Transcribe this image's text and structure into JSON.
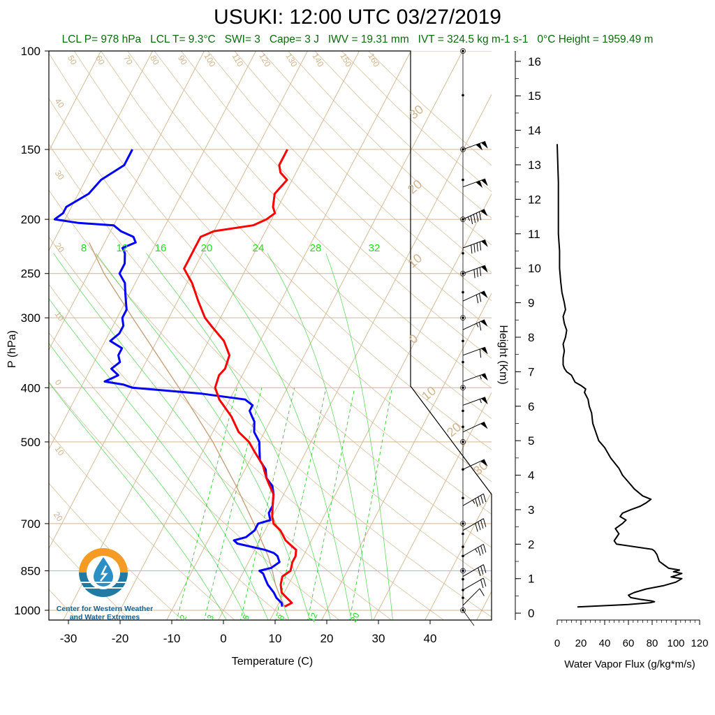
{
  "header": {
    "title": "USUKI: 12:00 UTC 03/27/2019",
    "stats": [
      {
        "label": "LCL P= 978 hPa"
      },
      {
        "label": "LCL T= 9.3°C"
      },
      {
        "label": "SWI= 3"
      },
      {
        "label": "Cape= 3 J"
      },
      {
        "label": "IWV = 19.31 mm"
      },
      {
        "label": "IVT = 324.5 kg m-1 s-1"
      },
      {
        "label": "0°C Height = 1959.49 m"
      }
    ]
  },
  "logo": {
    "line1": "Center for Western Weather",
    "line2": "and Water Extremes"
  },
  "colors": {
    "temperature": "#ff0000",
    "dewpoint": "#0000ff",
    "isotherm": "#d2b48c",
    "mixing_ratio": "#33cc33",
    "subtitle": "#0a6b0a",
    "flux": "#000000"
  },
  "chart_data": [
    {
      "type": "line",
      "subtype": "skew-t",
      "xlabel": "Temperature (C)",
      "ylabel": "P (hPa)",
      "xlim": [
        -34,
        50
      ],
      "ylim": [
        1050,
        100
      ],
      "yscale": "log",
      "x_ticks": [
        "-30",
        "-20",
        "-10",
        "0",
        "10",
        "20",
        "30",
        "40"
      ],
      "y_ticks": [
        "100",
        "150",
        "200",
        "250",
        "300",
        "400",
        "500",
        "700",
        "850",
        "1000"
      ],
      "isotherm_labels": [
        "50",
        "60",
        "70",
        "80",
        "90",
        "100",
        "110",
        "120",
        "130",
        "140",
        "150",
        "160",
        "40",
        "30",
        "20",
        "10",
        "0",
        "10",
        "20",
        "30",
        "20",
        "10",
        "0",
        "10",
        "20",
        "30"
      ],
      "mixing_ratio_labels_top": [
        "8",
        "12",
        "16",
        "20",
        "24",
        "28",
        "32"
      ],
      "mixing_ratio_labels_bottom": [
        "2",
        "3",
        "5",
        "8",
        "12",
        "20"
      ],
      "series": [
        {
          "name": "Temperature",
          "pressure": [
            985,
            970,
            950,
            930,
            900,
            870,
            850,
            820,
            800,
            780,
            750,
            720,
            700,
            680,
            650,
            620,
            600,
            580,
            550,
            520,
            500,
            480,
            450,
            420,
            400,
            380,
            370,
            350,
            330,
            310,
            300,
            280,
            260,
            245,
            235,
            225,
            215,
            210,
            205,
            200,
            195,
            190,
            180,
            170,
            165,
            160,
            155,
            150
          ],
          "t": [
            11.5,
            12.5,
            11,
            9.5,
            8.5,
            8,
            9,
            8.5,
            8.5,
            8,
            5,
            3,
            1,
            0,
            -1,
            -2,
            -3.5,
            -5,
            -7,
            -10,
            -12,
            -15,
            -18,
            -22,
            -24,
            -24.5,
            -24,
            -24.5,
            -27,
            -31,
            -33,
            -36,
            -39,
            -42,
            -42,
            -42,
            -42,
            -40,
            -33,
            -31,
            -30,
            -31,
            -32,
            -31,
            -33,
            -34,
            -34,
            -34
          ]
        },
        {
          "name": "Dewpoint",
          "pressure": [
            985,
            970,
            950,
            930,
            900,
            880,
            860,
            850,
            840,
            820,
            800,
            790,
            780,
            760,
            750,
            740,
            720,
            700,
            690,
            670,
            650,
            620,
            600,
            580,
            560,
            540,
            520,
            500,
            480,
            460,
            450,
            440,
            430,
            420,
            410,
            400,
            395,
            390,
            385,
            380,
            370,
            360,
            350,
            340,
            330,
            320,
            310,
            300,
            290,
            280,
            270,
            260,
            250,
            240,
            230,
            225,
            220,
            215,
            210,
            205,
            203,
            200,
            195,
            190,
            180,
            170,
            160,
            150
          ],
          "td": [
            11,
            10.5,
            9,
            8,
            6,
            5,
            4,
            3,
            5,
            6,
            5,
            4,
            2,
            -4,
            -5,
            -3,
            -2,
            -2,
            0,
            -1,
            -1,
            -2,
            -3,
            -5,
            -6,
            -8,
            -9,
            -10,
            -12,
            -13,
            -14,
            -15,
            -15,
            -17,
            -26,
            -40,
            -42,
            -46,
            -45,
            -44,
            -46,
            -45,
            -46,
            -46,
            -49,
            -48,
            -48,
            -49,
            -49,
            -50,
            -51,
            -52,
            -54,
            -54,
            -55,
            -56,
            -54,
            -55,
            -58,
            -60,
            -67,
            -72,
            -71,
            -71,
            -68,
            -67,
            -64,
            -64
          ]
        },
        {
          "name": "Parcel",
          "pressure": [
            985,
            950,
            900,
            850,
            800,
            700,
            600,
            500,
            400,
            300,
            250,
            220
          ],
          "t": [
            11.5,
            9.8,
            7.5,
            5.5,
            3.2,
            -2.8,
            -10,
            -19,
            -31,
            -47,
            -57,
            -63
          ]
        }
      ],
      "wind_barbs": [
        {
          "pressure": 150,
          "dir": 250,
          "speed": 100
        },
        {
          "pressure": 175,
          "dir": 250,
          "speed": 100
        },
        {
          "pressure": 200,
          "dir": 245,
          "speed": 95
        },
        {
          "pressure": 225,
          "dir": 250,
          "speed": 90
        },
        {
          "pressure": 250,
          "dir": 250,
          "speed": 80
        },
        {
          "pressure": 280,
          "dir": 245,
          "speed": 70
        },
        {
          "pressure": 315,
          "dir": 245,
          "speed": 65
        },
        {
          "pressure": 350,
          "dir": 250,
          "speed": 60
        },
        {
          "pressure": 390,
          "dir": 250,
          "speed": 55
        },
        {
          "pressure": 430,
          "dir": 250,
          "speed": 55
        },
        {
          "pressure": 480,
          "dir": 245,
          "speed": 50
        },
        {
          "pressure": 560,
          "dir": 245,
          "speed": 50
        },
        {
          "pressure": 650,
          "dir": 240,
          "speed": 45
        },
        {
          "pressure": 720,
          "dir": 240,
          "speed": 40
        },
        {
          "pressure": 800,
          "dir": 240,
          "speed": 35
        },
        {
          "pressure": 870,
          "dir": 240,
          "speed": 30
        },
        {
          "pressure": 920,
          "dir": 240,
          "speed": 20
        },
        {
          "pressure": 980,
          "dir": 225,
          "speed": 10
        }
      ]
    },
    {
      "type": "line",
      "xlabel": "Water Vapor Flux (g/kg*m/s)",
      "ylabel": "Height (Km)",
      "xlim": [
        0,
        120
      ],
      "ylim": [
        -0.2,
        16.3
      ],
      "x_ticks": [
        "0",
        "20",
        "40",
        "60",
        "80",
        "100",
        "120"
      ],
      "y_ticks": [
        "0",
        "1",
        "2",
        "3",
        "4",
        "5",
        "6",
        "7",
        "8",
        "9",
        "10",
        "11",
        "12",
        "13",
        "14",
        "15",
        "16"
      ],
      "series": [
        {
          "name": "Flux",
          "height": [
            0.18,
            0.25,
            0.3,
            0.33,
            0.35,
            0.4,
            0.45,
            0.52,
            0.6,
            0.7,
            0.8,
            0.9,
            1.0,
            1.05,
            1.15,
            1.2,
            1.25,
            1.3,
            1.35,
            1.4,
            1.5,
            1.6,
            1.7,
            1.8,
            1.85,
            2.0,
            2.1,
            2.3,
            2.45,
            2.6,
            2.7,
            2.8,
            2.9,
            3.0,
            3.1,
            3.2,
            3.3,
            3.4,
            3.6,
            3.8,
            4.0,
            4.2,
            4.5,
            4.8,
            5.0,
            5.3,
            5.5,
            5.8,
            6.0,
            6.2,
            6.4,
            6.5,
            6.6,
            6.7,
            6.9,
            7.0,
            7.1,
            7.2,
            7.3,
            7.4,
            7.6,
            7.8,
            8.0,
            8.2,
            8.4,
            8.6,
            8.8,
            9.0,
            9.3,
            9.6,
            10.0,
            10.5,
            11.0,
            11.5,
            12.0,
            12.5,
            13.0,
            13.6
          ],
          "flux": [
            17,
            60,
            78,
            82,
            80,
            70,
            62,
            60,
            65,
            75,
            90,
            100,
            105,
            96,
            105,
            98,
            103,
            94,
            92,
            90,
            86,
            85,
            84,
            82,
            80,
            50,
            48,
            52,
            49,
            55,
            58,
            53,
            55,
            62,
            70,
            75,
            79,
            72,
            65,
            60,
            55,
            52,
            45,
            40,
            35,
            32,
            30,
            29,
            27,
            26,
            23,
            24,
            20,
            15,
            12,
            8,
            6,
            5,
            5,
            5,
            6,
            5,
            7,
            8,
            6,
            5,
            7,
            6,
            4,
            3,
            2,
            2,
            1,
            1,
            1,
            1,
            0.5,
            0
          ]
        }
      ]
    }
  ]
}
